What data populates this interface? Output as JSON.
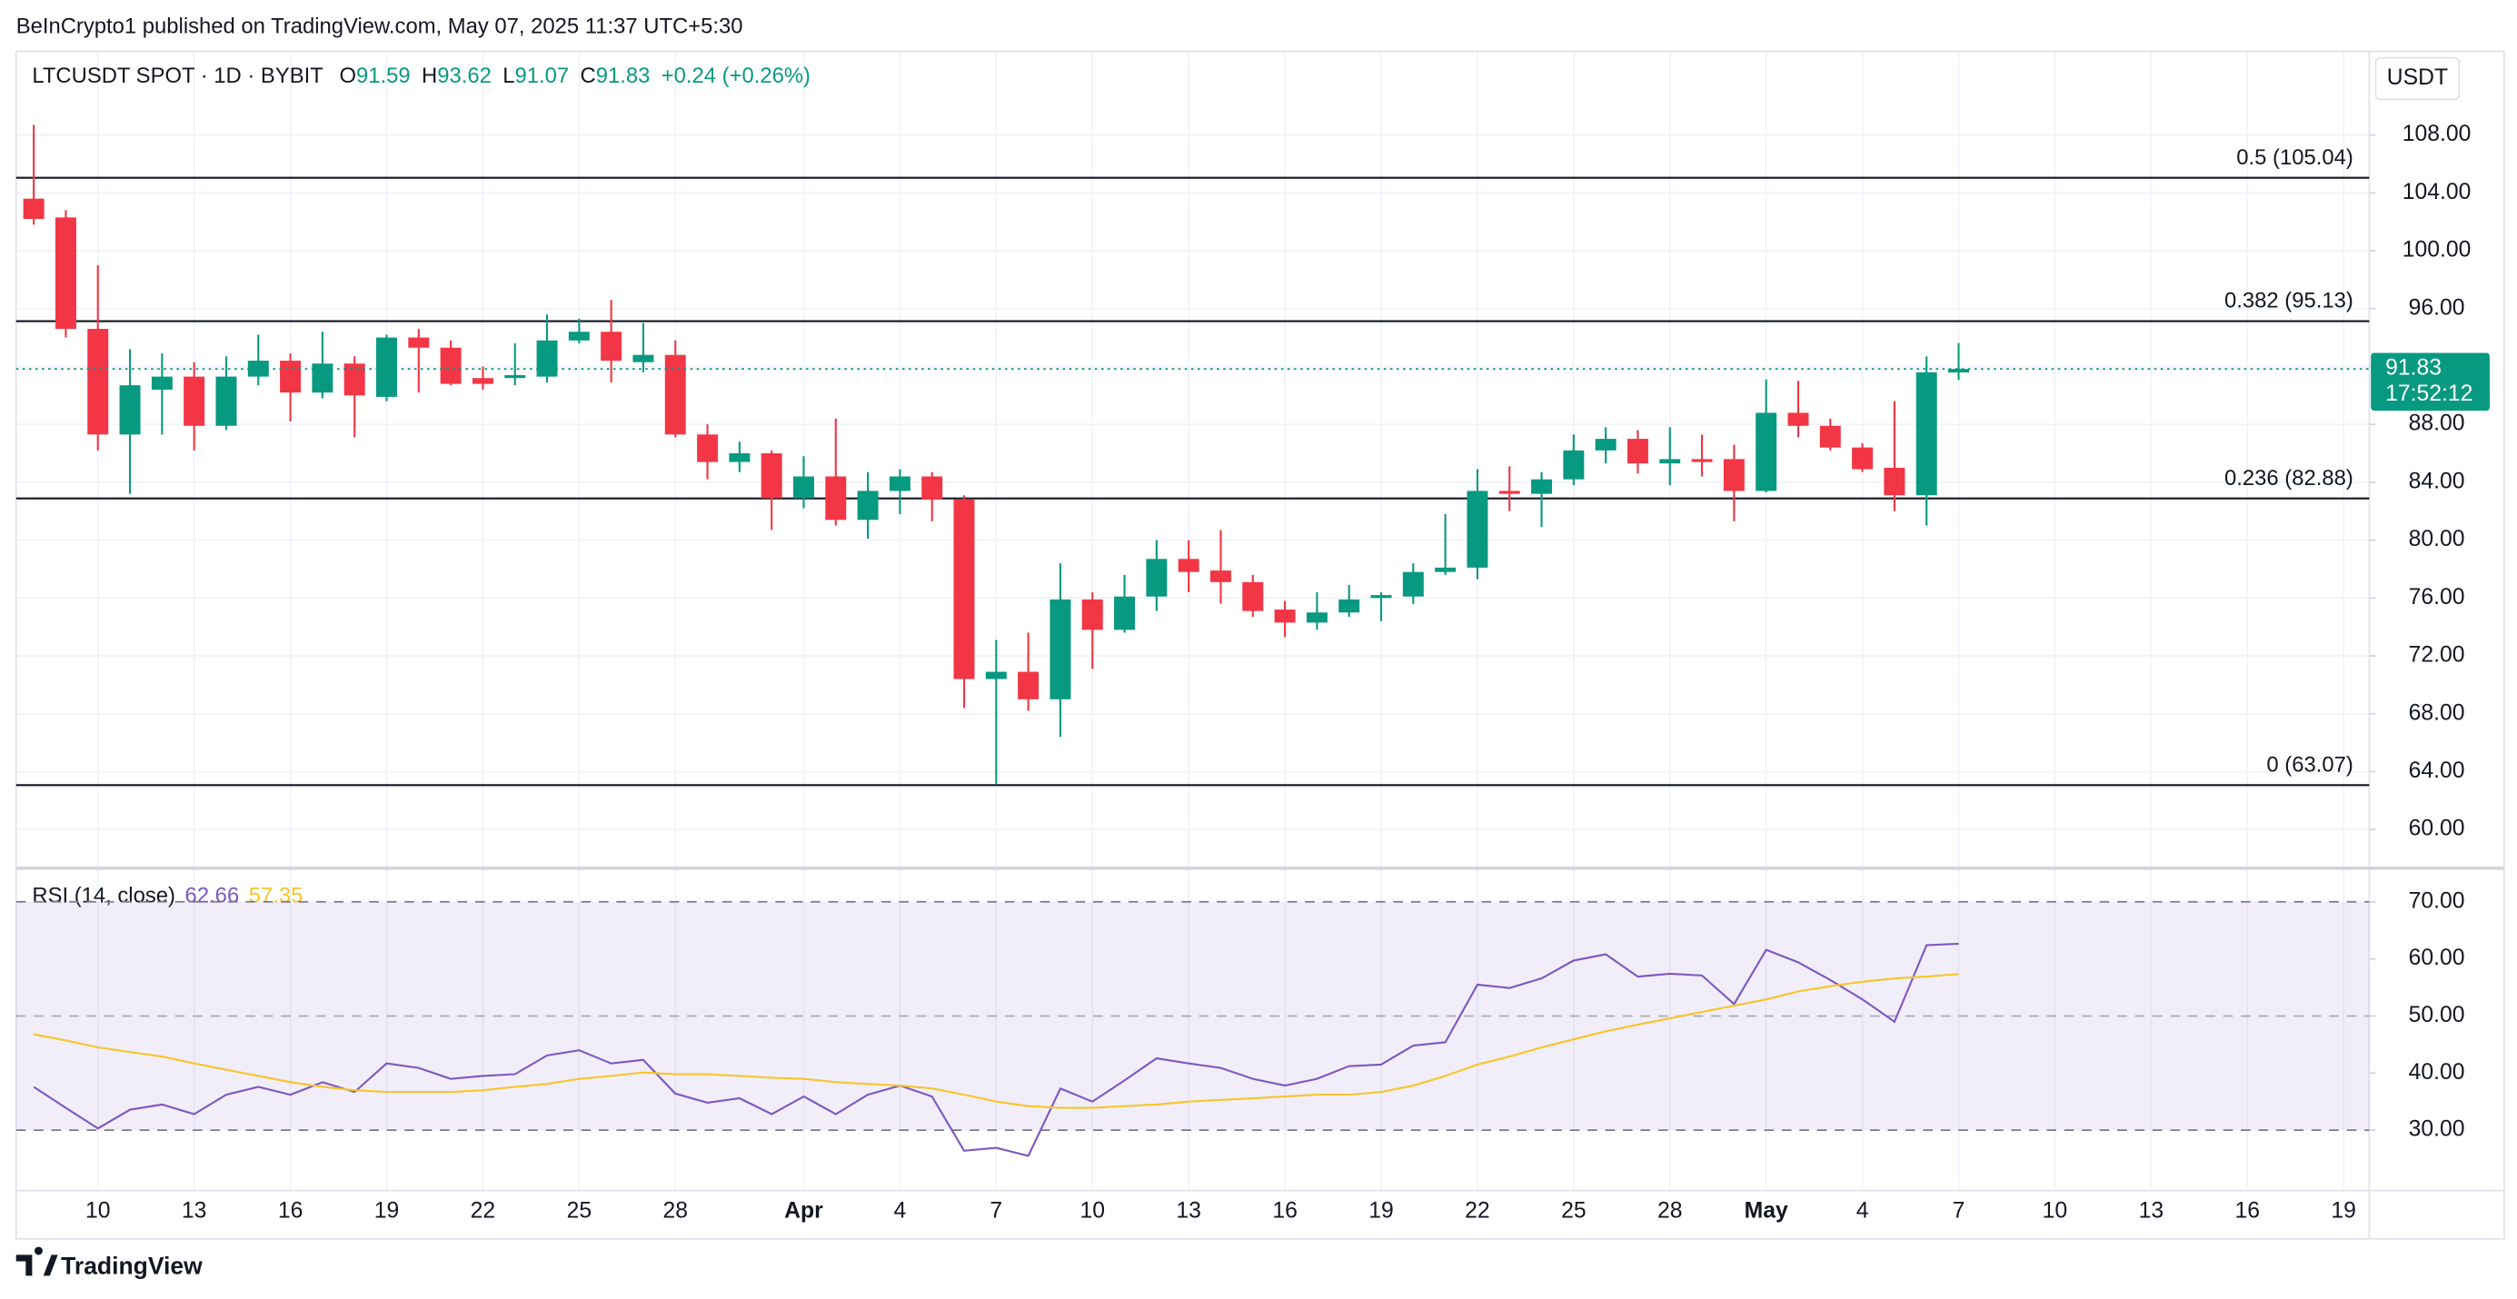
{
  "header": "BeInCrypto1 published on TradingView.com, May 07, 2025 11:37 UTC+5:30",
  "footer": "TradingView",
  "chart_data": [
    {
      "type": "candlestick",
      "title": "LTCUSDT SPOT · 1D · BYBIT",
      "ohlc_labels": [
        "O",
        "H",
        "L",
        "C"
      ],
      "change": "+0.24 (+0.26%)",
      "currency": "USDT",
      "countdown": "17:52:12",
      "up_color": "#089981",
      "down_color": "#f23645",
      "x": [
        0,
        1,
        2,
        3,
        4,
        5,
        6,
        7,
        8,
        9,
        10,
        11,
        12,
        13,
        14,
        15,
        16,
        17,
        18,
        19,
        20,
        21,
        22,
        23,
        24,
        25,
        26,
        27,
        28,
        29,
        30,
        31,
        32,
        33,
        34,
        35,
        36,
        37,
        38,
        39,
        40,
        41,
        42,
        43,
        44,
        45,
        46,
        47,
        48,
        49,
        50,
        51,
        52,
        53,
        54,
        55,
        56,
        57,
        58,
        59,
        60
      ],
      "open": [
        103.6,
        102.3,
        94.6,
        87.3,
        90.4,
        91.3,
        87.9,
        91.3,
        92.4,
        90.2,
        92.2,
        89.9,
        94.0,
        93.3,
        91.2,
        91.2,
        91.3,
        93.8,
        94.4,
        92.3,
        92.8,
        87.3,
        85.4,
        86.0,
        82.9,
        84.4,
        81.4,
        83.4,
        84.4,
        82.8,
        70.4,
        70.9,
        69.0,
        75.9,
        73.8,
        76.1,
        78.7,
        77.9,
        77.1,
        75.2,
        74.3,
        75.0,
        76.0,
        76.1,
        77.8,
        78.1,
        83.4,
        83.2,
        84.2,
        86.2,
        87.0,
        85.3,
        85.6,
        85.6,
        83.4,
        88.8,
        87.9,
        86.4,
        85.0,
        83.1,
        91.59
      ],
      "high": [
        108.7,
        102.8,
        99.0,
        93.2,
        92.9,
        92.3,
        92.7,
        94.2,
        92.9,
        94.4,
        92.7,
        94.2,
        94.6,
        93.8,
        92.0,
        93.6,
        95.6,
        95.3,
        96.6,
        95.0,
        93.8,
        88.0,
        86.8,
        86.2,
        85.8,
        88.4,
        84.7,
        84.9,
        84.7,
        83.1,
        73.1,
        73.6,
        78.4,
        76.4,
        77.6,
        80.0,
        80.0,
        80.7,
        77.6,
        75.8,
        76.4,
        76.9,
        76.4,
        78.4,
        81.8,
        84.9,
        85.1,
        84.7,
        87.3,
        87.8,
        87.6,
        87.8,
        87.3,
        86.6,
        91.1,
        91.0,
        88.4,
        86.7,
        89.6,
        92.7,
        93.62
      ],
      "low": [
        101.8,
        94.0,
        86.2,
        83.2,
        87.3,
        86.2,
        87.6,
        90.7,
        88.2,
        89.8,
        87.1,
        89.6,
        90.2,
        90.7,
        90.4,
        90.7,
        90.9,
        93.6,
        90.9,
        91.6,
        87.1,
        84.2,
        84.7,
        80.7,
        82.2,
        81.0,
        80.1,
        81.8,
        81.3,
        68.4,
        63.1,
        68.2,
        66.4,
        71.1,
        73.6,
        75.1,
        76.4,
        75.6,
        74.7,
        73.3,
        73.8,
        74.7,
        74.4,
        75.6,
        77.6,
        77.3,
        82.0,
        80.9,
        83.8,
        85.3,
        84.6,
        83.8,
        84.4,
        81.3,
        83.3,
        87.1,
        86.2,
        84.7,
        82.0,
        81.0,
        91.07
      ],
      "close": [
        102.2,
        94.6,
        87.3,
        90.7,
        91.3,
        87.9,
        91.3,
        92.4,
        90.2,
        92.2,
        90.0,
        94.0,
        93.3,
        90.8,
        90.8,
        91.4,
        93.8,
        94.4,
        92.4,
        92.8,
        87.3,
        85.4,
        86.0,
        82.9,
        84.4,
        81.4,
        83.4,
        84.4,
        82.8,
        70.4,
        70.9,
        69.0,
        75.9,
        73.8,
        76.1,
        78.7,
        77.8,
        77.1,
        75.1,
        74.3,
        75.0,
        75.9,
        76.2,
        77.8,
        78.1,
        83.4,
        83.2,
        84.2,
        86.2,
        87.0,
        85.3,
        85.6,
        85.4,
        83.4,
        88.8,
        87.9,
        86.4,
        84.9,
        83.1,
        91.6,
        91.83
      ],
      "levels": [
        {
          "label": "0.5 (105.04)",
          "value": 105.04
        },
        {
          "label": "0.382 (95.13)",
          "value": 95.13
        },
        {
          "label": "0.236 (82.88)",
          "value": 82.88
        },
        {
          "label": "0 (63.07)",
          "value": 63.07
        }
      ],
      "xlim": [
        -0.55,
        72.8
      ],
      "ylim": [
        57.33,
        113.78
      ],
      "yticks": [
        {
          "value": 60,
          "label": "60.00"
        },
        {
          "value": 64,
          "label": "64.00"
        },
        {
          "value": 68,
          "label": "68.00"
        },
        {
          "value": 72,
          "label": "72.00"
        },
        {
          "value": 76,
          "label": "76.00"
        },
        {
          "value": 80,
          "label": "80.00"
        },
        {
          "value": 84,
          "label": "84.00"
        },
        {
          "value": 88,
          "label": "88.00"
        },
        {
          "value": 92,
          "label": "92.00"
        },
        {
          "value": 96,
          "label": "96.00"
        },
        {
          "value": 100,
          "label": "100.00"
        },
        {
          "value": 104,
          "label": "104.00"
        },
        {
          "value": 108,
          "label": "108.00"
        }
      ],
      "grid": true
    },
    {
      "type": "line",
      "title": "RSI (14, close)",
      "x": [
        0,
        1,
        2,
        3,
        4,
        5,
        6,
        7,
        8,
        9,
        10,
        11,
        12,
        13,
        14,
        15,
        16,
        17,
        18,
        19,
        20,
        21,
        22,
        23,
        24,
        25,
        26,
        27,
        28,
        29,
        30,
        31,
        32,
        33,
        34,
        35,
        36,
        37,
        38,
        39,
        40,
        41,
        42,
        43,
        44,
        45,
        46,
        47,
        48,
        49,
        50,
        51,
        52,
        53,
        54,
        55,
        56,
        57,
        58,
        59,
        60
      ],
      "series": [
        {
          "color": "#7e57c2",
          "values": [
            37.6,
            33.9,
            30.3,
            33.6,
            34.5,
            32.8,
            36.2,
            37.6,
            36.2,
            38.4,
            36.7,
            41.7,
            40.9,
            39.0,
            39.5,
            39.8,
            43.1,
            44.0,
            41.7,
            42.3,
            36.4,
            34.8,
            35.6,
            32.8,
            35.9,
            32.8,
            36.2,
            37.8,
            35.9,
            26.4,
            26.9,
            25.5,
            37.3,
            35.0,
            38.7,
            42.6,
            41.7,
            40.9,
            39.0,
            37.8,
            39.0,
            41.2,
            41.5,
            44.8,
            45.4,
            55.5,
            54.9,
            56.6,
            59.7,
            60.8,
            56.9,
            57.4,
            57.1,
            52.1,
            61.6,
            59.4,
            56.3,
            52.9,
            49.0,
            62.4,
            62.66
          ]
        },
        {
          "color": "#f7c52b",
          "values": [
            46.8,
            45.7,
            44.5,
            43.7,
            42.9,
            41.7,
            40.6,
            39.5,
            38.4,
            37.6,
            37.0,
            36.7,
            36.7,
            36.7,
            37.0,
            37.6,
            38.1,
            39.0,
            39.5,
            40.1,
            39.8,
            39.8,
            39.5,
            39.2,
            39.0,
            38.4,
            38.1,
            37.8,
            37.3,
            36.2,
            35.0,
            34.2,
            33.9,
            33.9,
            34.2,
            34.5,
            35.0,
            35.3,
            35.6,
            35.9,
            36.2,
            36.2,
            36.7,
            37.8,
            39.5,
            41.5,
            42.9,
            44.5,
            45.9,
            47.3,
            48.5,
            49.6,
            50.7,
            51.8,
            52.9,
            54.3,
            55.2,
            56.0,
            56.6,
            56.9,
            57.35
          ]
        }
      ],
      "band": [
        30,
        70
      ],
      "midline": 50,
      "xlim": [
        -0.55,
        72.8
      ],
      "ylim": [
        19.4,
        75.9
      ],
      "yticks": [
        {
          "value": 30,
          "label": "30.00"
        },
        {
          "value": 40,
          "label": "40.00"
        },
        {
          "value": 50,
          "label": "50.00"
        },
        {
          "value": 60,
          "label": "60.00"
        },
        {
          "value": 70,
          "label": "70.00"
        }
      ],
      "xticks": [
        {
          "value": 2,
          "label": "10"
        },
        {
          "value": 5,
          "label": "13"
        },
        {
          "value": 8,
          "label": "16"
        },
        {
          "value": 11,
          "label": "19"
        },
        {
          "value": 14,
          "label": "22"
        },
        {
          "value": 17,
          "label": "25"
        },
        {
          "value": 20,
          "label": "28"
        },
        {
          "value": 24,
          "label": "Apr"
        },
        {
          "value": 27,
          "label": "4"
        },
        {
          "value": 30,
          "label": "7"
        },
        {
          "value": 33,
          "label": "10"
        },
        {
          "value": 36,
          "label": "13"
        },
        {
          "value": 39,
          "label": "16"
        },
        {
          "value": 42,
          "label": "19"
        },
        {
          "value": 45,
          "label": "22"
        },
        {
          "value": 48,
          "label": "25"
        },
        {
          "value": 51,
          "label": "28"
        },
        {
          "value": 54,
          "label": "May"
        },
        {
          "value": 57,
          "label": "4"
        },
        {
          "value": 60,
          "label": "7"
        },
        {
          "value": 63,
          "label": "10"
        },
        {
          "value": 66,
          "label": "13"
        },
        {
          "value": 69,
          "label": "16"
        },
        {
          "value": 72,
          "label": "19"
        }
      ],
      "grid": true
    }
  ]
}
